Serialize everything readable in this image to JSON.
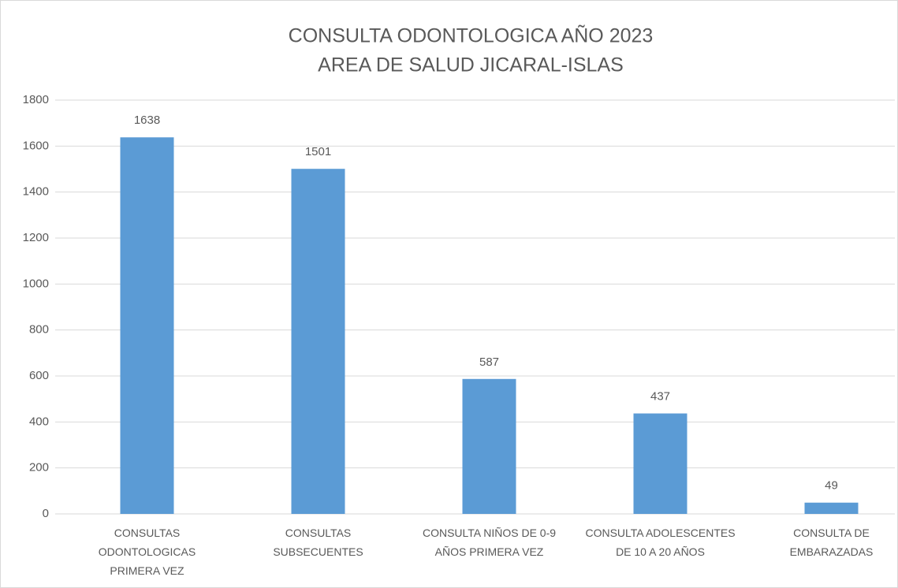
{
  "chart_data": {
    "type": "bar",
    "title": "CONSULTA ODONTOLOGICA  AÑO 2023",
    "subtitle": "AREA DE SALUD JICARAL-ISLAS",
    "categories": [
      "CONSULTAS ODONTOLOGICAS PRIMERA VEZ",
      "CONSULTAS SUBSECUENTES",
      "CONSULTA NIÑOS DE 0-9 AÑOS PRIMERA VEZ",
      "CONSULTA ADOLESCENTES DE 10 A 20 AÑOS",
      "CONSULTA DE EMBARAZADAS"
    ],
    "values": [
      1638,
      1501,
      587,
      437,
      49
    ],
    "color": "#5b9bd5",
    "ylim": [
      0,
      1800
    ],
    "yticks": [
      0,
      200,
      400,
      600,
      800,
      1000,
      1200,
      1400,
      1600,
      1800
    ],
    "grid": true
  }
}
